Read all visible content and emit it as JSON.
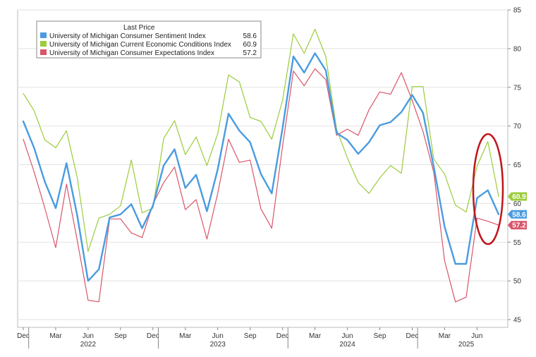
{
  "chart_data": {
    "type": "line",
    "title": "",
    "xlabel": "",
    "ylabel": "",
    "ylim": [
      44,
      85
    ],
    "y_ticks": [
      45,
      50,
      55,
      60,
      65,
      70,
      75,
      80,
      85
    ],
    "grid": true,
    "legend_placement": "top-left",
    "legend_title": "Last Price",
    "x": [
      "2021-12",
      "2022-01",
      "2022-02",
      "2022-03",
      "2022-04",
      "2022-05",
      "2022-06",
      "2022-07",
      "2022-08",
      "2022-09",
      "2022-10",
      "2022-11",
      "2022-12",
      "2023-01",
      "2023-02",
      "2023-03",
      "2023-04",
      "2023-05",
      "2023-06",
      "2023-07",
      "2023-08",
      "2023-09",
      "2023-10",
      "2023-11",
      "2023-12",
      "2024-01",
      "2024-02",
      "2024-03",
      "2024-04",
      "2024-05",
      "2024-06",
      "2024-07",
      "2024-08",
      "2024-09",
      "2024-10",
      "2024-11",
      "2024-12",
      "2025-01",
      "2025-02",
      "2025-03",
      "2025-04",
      "2025-05",
      "2025-06",
      "2025-07",
      "2025-08"
    ],
    "month_ticks": [
      {
        "x": "2021-12",
        "label": "Dec"
      },
      {
        "x": "2022-03",
        "label": "Mar"
      },
      {
        "x": "2022-06",
        "label": "Jun"
      },
      {
        "x": "2022-09",
        "label": "Sep"
      },
      {
        "x": "2022-12",
        "label": "Dec"
      },
      {
        "x": "2023-03",
        "label": "Mar"
      },
      {
        "x": "2023-06",
        "label": "Jun"
      },
      {
        "x": "2023-09",
        "label": "Sep"
      },
      {
        "x": "2023-12",
        "label": "Dec"
      },
      {
        "x": "2024-03",
        "label": "Mar"
      },
      {
        "x": "2024-06",
        "label": "Jun"
      },
      {
        "x": "2024-09",
        "label": "Sep"
      },
      {
        "x": "2024-12",
        "label": "Dec"
      },
      {
        "x": "2025-03",
        "label": "Mar"
      },
      {
        "x": "2025-06",
        "label": "Jun"
      }
    ],
    "year_labels": [
      {
        "x": "2022-06",
        "label": "2022"
      },
      {
        "x": "2023-06",
        "label": "2023"
      },
      {
        "x": "2024-06",
        "label": "2024"
      },
      {
        "x": "2025-05",
        "label": "2025"
      }
    ],
    "series": [
      {
        "name": "University of Michigan Consumer Sentiment Index",
        "last": "58.6",
        "color": "#4a9be0",
        "values": [
          70.6,
          67.2,
          62.8,
          59.4,
          65.2,
          58.4,
          50.0,
          51.5,
          58.2,
          58.6,
          59.9,
          56.8,
          59.7,
          64.9,
          67.0,
          62.0,
          63.7,
          59.0,
          64.4,
          71.6,
          69.4,
          67.9,
          63.8,
          61.3,
          69.7,
          79.0,
          76.9,
          79.4,
          77.2,
          69.1,
          68.2,
          66.4,
          67.9,
          70.1,
          70.5,
          71.8,
          74.0,
          71.7,
          64.7,
          57.0,
          52.2,
          52.2,
          60.7,
          61.7,
          58.6
        ]
      },
      {
        "name": "University of Michigan Current Economic Conditions Index",
        "last": "60.9",
        "color": "#9bcc3c",
        "values": [
          74.2,
          72.0,
          68.2,
          67.2,
          69.4,
          63.3,
          53.8,
          58.1,
          58.6,
          59.7,
          65.6,
          58.8,
          59.4,
          68.4,
          70.7,
          66.3,
          68.6,
          64.9,
          69.0,
          76.6,
          75.7,
          71.1,
          70.6,
          68.3,
          73.3,
          81.9,
          79.4,
          82.5,
          79.0,
          69.6,
          65.9,
          62.7,
          61.3,
          63.3,
          64.9,
          63.9,
          75.1,
          75.1,
          65.7,
          63.8,
          59.8,
          58.9,
          64.8,
          68.0,
          60.9
        ]
      },
      {
        "name": "University of Michigan Consumer Expectations Index",
        "last": "57.2",
        "color": "#d9556a",
        "values": [
          68.3,
          64.1,
          59.4,
          54.3,
          62.5,
          55.2,
          47.5,
          47.3,
          58.0,
          58.0,
          56.2,
          55.6,
          59.9,
          62.7,
          64.7,
          59.2,
          60.5,
          55.4,
          61.3,
          68.3,
          65.3,
          65.6,
          59.3,
          56.8,
          67.4,
          77.1,
          75.2,
          77.4,
          76.0,
          68.8,
          69.6,
          68.8,
          72.1,
          74.4,
          74.1,
          76.9,
          73.3,
          69.3,
          64.0,
          52.6,
          47.3,
          47.9,
          58.1,
          57.7,
          57.2
        ]
      }
    ]
  }
}
